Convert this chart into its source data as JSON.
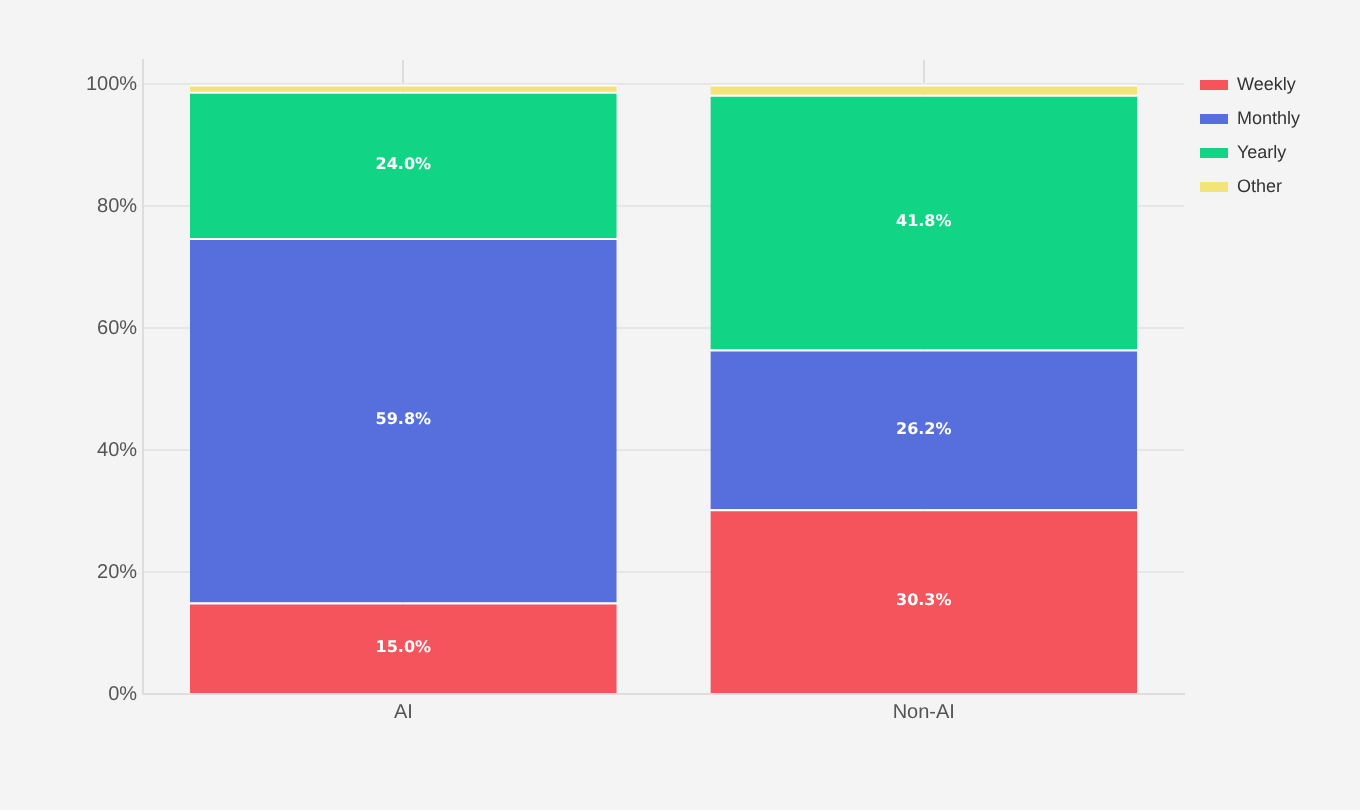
{
  "chart_data": {
    "type": "bar",
    "stacked": true,
    "categories": [
      "AI",
      "Non-AI"
    ],
    "series": [
      {
        "name": "Weekly",
        "color": "#f5545c",
        "values": [
          15.0,
          30.3
        ],
        "value_labels": [
          "15.0%",
          "30.3%"
        ]
      },
      {
        "name": "Monthly",
        "color": "#566fdc",
        "values": [
          59.8,
          26.2
        ],
        "value_labels": [
          "59.8%",
          "26.2%"
        ]
      },
      {
        "name": "Yearly",
        "color": "#11d584",
        "values": [
          24.0,
          41.8
        ],
        "value_labels": [
          "24.0%",
          "41.8%"
        ]
      },
      {
        "name": "Other",
        "color": "#f3e479",
        "values": [
          1.2,
          1.7
        ]
      }
    ],
    "ylim": [
      0,
      104
    ],
    "yticks": [
      {
        "value": 0,
        "label": "0%"
      },
      {
        "value": 20,
        "label": "20%"
      },
      {
        "value": 40,
        "label": "40%"
      },
      {
        "value": 60,
        "label": "60%"
      },
      {
        "value": 80,
        "label": "80%"
      },
      {
        "value": 100,
        "label": "100%"
      }
    ],
    "grid": true,
    "legend": "top right"
  }
}
